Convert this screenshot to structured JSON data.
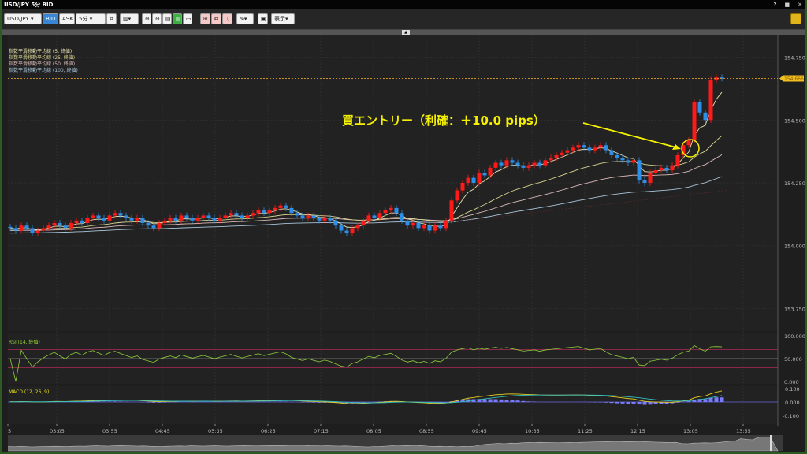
{
  "window": {
    "title": "USD/JPY 5分 BID",
    "controls": [
      "?",
      "■",
      "✕"
    ]
  },
  "toolbar": {
    "symbol": "USD/JPY",
    "bid": "BID",
    "ask": "ASK",
    "timeframe": "5分",
    "display": "表示",
    "icons": [
      "link-icon",
      "chart-type-icon",
      "zoom-in-icon",
      "zoom-out-icon",
      "layout-icon",
      "layout-active-icon",
      "window-icon",
      "add-order-icon",
      "copy-icon",
      "sound-icon",
      "pen-icon",
      "screenshot-icon"
    ]
  },
  "legend": [
    "指数平滑移動平均線 (5, 終値)",
    "指数平滑移動平均線 (25, 終値)",
    "指数平滑移動平均線 (50, 終値)",
    "指数平滑移動平均線 (100, 終値)"
  ],
  "colors": {
    "up": "#ff1a1a",
    "down": "#2e8fe8",
    "ema5": "#e8e0b0",
    "ema25": "#d8d490",
    "ema50": "#d8b8b8",
    "ema100": "#a8c4d8",
    "annotation": "#f4f000",
    "price_tag": "#f0c020"
  },
  "annotation": "買エントリー（利確：＋10.0 pips）",
  "current_price": "154.666",
  "chart_data": {
    "type": "candlestick",
    "interval": "5分",
    "yticks": [
      "154.750",
      "154.500",
      "154.250",
      "154.000",
      "153.750"
    ],
    "ylim": [
      153.66,
      154.84
    ],
    "xticks": [
      "5",
      "03:05",
      "03:55",
      "04:45",
      "05:35",
      "06:25",
      "07:15",
      "08:05",
      "08:55",
      "09:45",
      "10:35",
      "11:25",
      "12:15",
      "13:05",
      "13:55"
    ],
    "closes": [
      154.07,
      154.06,
      154.08,
      154.07,
      154.05,
      154.06,
      154.07,
      154.08,
      154.09,
      154.08,
      154.07,
      154.09,
      154.1,
      154.09,
      154.11,
      154.12,
      154.11,
      154.1,
      154.12,
      154.13,
      154.12,
      154.11,
      154.1,
      154.11,
      154.09,
      154.08,
      154.07,
      154.09,
      154.1,
      154.11,
      154.1,
      154.12,
      154.11,
      154.1,
      154.11,
      154.12,
      154.11,
      154.1,
      154.11,
      154.12,
      154.13,
      154.12,
      154.11,
      154.12,
      154.13,
      154.14,
      154.13,
      154.14,
      154.15,
      154.16,
      154.15,
      154.13,
      154.12,
      154.11,
      154.12,
      154.11,
      154.1,
      154.11,
      154.1,
      154.08,
      154.06,
      154.05,
      154.07,
      154.08,
      154.1,
      154.12,
      154.11,
      154.13,
      154.14,
      154.15,
      154.13,
      154.1,
      154.08,
      154.09,
      154.07,
      154.08,
      154.06,
      154.08,
      154.07,
      154.1,
      154.18,
      154.22,
      154.25,
      154.27,
      154.25,
      154.29,
      154.28,
      154.31,
      154.33,
      154.32,
      154.34,
      154.33,
      154.32,
      154.31,
      154.32,
      154.33,
      154.32,
      154.34,
      154.35,
      154.36,
      154.37,
      154.38,
      154.39,
      154.4,
      154.39,
      154.38,
      154.39,
      154.4,
      154.38,
      154.36,
      154.35,
      154.34,
      154.33,
      154.34,
      154.26,
      154.25,
      154.29,
      154.3,
      154.31,
      154.3,
      154.32,
      154.36,
      154.4,
      154.42,
      154.57,
      154.53,
      154.5,
      154.66,
      154.67,
      154.666
    ],
    "rsi": {
      "label": "RSI (14, 終値)",
      "yticks": [
        "100.000",
        "50.000",
        "0.000"
      ],
      "levels": [
        70,
        50,
        30
      ]
    },
    "macd": {
      "label": "MACD (12, 26, 9)",
      "yticks": [
        "0.100",
        "0.000",
        "-0.100"
      ]
    }
  }
}
